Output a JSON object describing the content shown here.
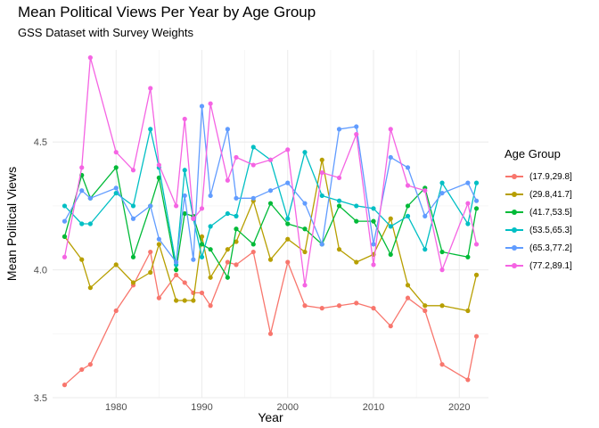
{
  "chart_data": {
    "type": "line",
    "title": "Mean Political Views Per Year by Age Group",
    "subtitle": "GSS Dataset with Survey Weights",
    "xlabel": "Year",
    "ylabel": "Mean Political Views",
    "xlim": [
      1972.6,
      2023.4
    ],
    "ylim": [
      3.5,
      4.86
    ],
    "x_ticks": [
      1980,
      1990,
      2000,
      2010,
      2020
    ],
    "y_ticks": [
      3.5,
      4.0,
      4.5
    ],
    "y_tick_labels": [
      "3.5",
      "4.0",
      "4.5"
    ],
    "grid": true,
    "legend_title": "Age Group",
    "legend_position": "right",
    "x": [
      1974,
      1976,
      1977,
      1980,
      1982,
      1984,
      1985,
      1987,
      1988,
      1989,
      1990,
      1991,
      1993,
      1994,
      1996,
      1998,
      2000,
      2002,
      2004,
      2006,
      2008,
      2010,
      2012,
      2014,
      2016,
      2018,
      2021,
      2022
    ],
    "series": [
      {
        "name": "(17.9,29.8]",
        "color": "#F8766D",
        "values": [
          3.55,
          3.61,
          3.63,
          3.84,
          3.94,
          4.07,
          3.89,
          3.98,
          3.95,
          3.91,
          3.91,
          3.86,
          4.03,
          4.02,
          4.07,
          3.75,
          4.03,
          3.86,
          3.85,
          3.86,
          3.87,
          3.85,
          3.78,
          3.89,
          3.84,
          3.63,
          3.57,
          3.74
        ]
      },
      {
        "name": "(29.8,41.7]",
        "color": "#B79F00",
        "values": [
          4.13,
          4.04,
          3.93,
          4.02,
          3.95,
          3.99,
          4.1,
          3.88,
          3.88,
          3.88,
          4.13,
          3.97,
          4.08,
          4.11,
          4.27,
          4.04,
          4.12,
          4.07,
          4.43,
          4.08,
          4.03,
          4.06,
          4.2,
          3.94,
          3.86,
          3.86,
          3.84,
          3.98
        ]
      },
      {
        "name": "(41.7,53.5]",
        "color": "#00BA38",
        "values": [
          4.13,
          4.37,
          4.28,
          4.4,
          4.05,
          4.25,
          4.36,
          4.0,
          4.22,
          4.21,
          4.1,
          4.08,
          3.97,
          4.16,
          4.1,
          4.26,
          4.18,
          4.16,
          4.1,
          4.25,
          4.19,
          4.19,
          4.06,
          4.25,
          4.32,
          4.07,
          4.05,
          4.24
        ]
      },
      {
        "name": "(53.5,65.3]",
        "color": "#00BFC4",
        "values": [
          4.25,
          4.18,
          4.18,
          4.3,
          4.25,
          4.55,
          4.4,
          4.02,
          4.39,
          4.2,
          4.05,
          4.17,
          4.22,
          4.21,
          4.48,
          4.43,
          4.2,
          4.46,
          4.29,
          4.27,
          4.25,
          4.24,
          4.17,
          4.21,
          4.08,
          4.34,
          4.18,
          4.34
        ]
      },
      {
        "name": "(65.3,77.2]",
        "color": "#619CFF",
        "values": [
          4.19,
          4.31,
          4.28,
          4.32,
          4.2,
          4.25,
          4.12,
          4.03,
          4.29,
          4.04,
          4.64,
          4.29,
          4.55,
          4.28,
          4.28,
          4.31,
          4.34,
          4.26,
          4.1,
          4.55,
          4.56,
          4.1,
          4.44,
          4.4,
          4.21,
          4.3,
          4.34,
          4.27
        ]
      },
      {
        "name": "(77.2,89.1]",
        "color": "#F564E3",
        "values": [
          4.05,
          4.4,
          4.83,
          4.46,
          4.39,
          4.71,
          4.41,
          4.25,
          4.59,
          4.2,
          4.24,
          4.65,
          4.35,
          4.44,
          4.41,
          4.43,
          4.47,
          3.94,
          4.38,
          4.36,
          4.53,
          4.02,
          4.55,
          4.33,
          4.31,
          4.0,
          4.26,
          4.1
        ]
      }
    ]
  }
}
